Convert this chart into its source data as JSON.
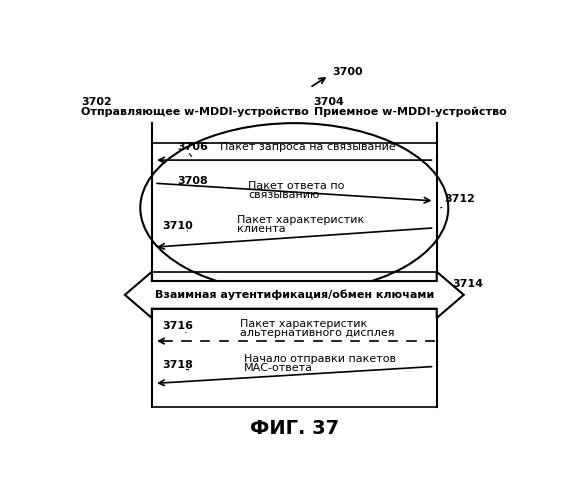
{
  "bg_color": "#ffffff",
  "title": "ФИГ. 37",
  "label_3700": "3700",
  "label_3702": "3702",
  "label_3704": "3704",
  "label_3706": "3706",
  "label_3708": "3708",
  "label_3710": "3710",
  "label_3712": "3712",
  "label_3714": "3714",
  "label_3716": "3716",
  "label_3718": "3718",
  "text_left": "Отправляющее w-MDDI-устройство",
  "text_right": "Приемное w-MDDI-устройство",
  "text_3706": "Пакет запроса на связывание",
  "text_3708_1": "Пакет ответа по",
  "text_3708_2": "связыванию",
  "text_3710_1": "Пакет характеристик",
  "text_3710_2": "клиента",
  "text_3714": "Взаимная аутентификация/обмен ключами",
  "text_3716_1": "Пакет характеристик",
  "text_3716_2": "альтернативного дисплея",
  "text_3718_1": "Начало отправки пакетов",
  "text_3718_2": "МАС-ответа"
}
